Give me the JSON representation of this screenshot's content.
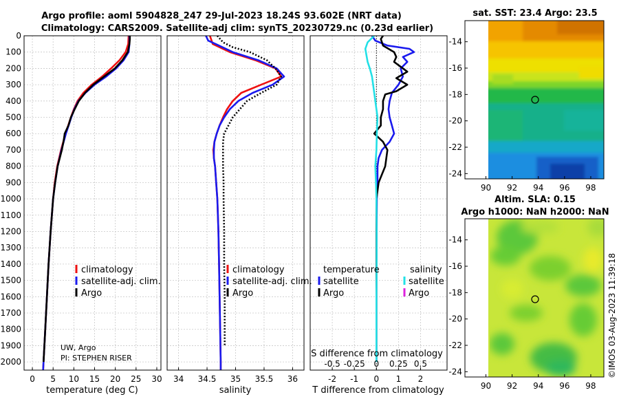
{
  "title_line1": "Argo profile: aoml 5904828_247 29-Jul-2023 18.24S 93.602E (NRT data)",
  "title_line2": "Climatology: CARS2009. Satellite-adj clim: synTS_20230729.nc (0.23d earlier)",
  "credit_line1": "UW, Argo",
  "credit_line2": "PI: STEPHEN RISER",
  "stamp": "©IMOS 03-Aug-2023 11:39:18",
  "colors": {
    "climatology": "#ee1111",
    "satellite": "#1a1aee",
    "argo": "#000000",
    "sat_salinity": "#22e0e6",
    "sat_argo_salinity": "#dd22dd"
  },
  "chart_data": [
    {
      "type": "line",
      "id": "temperature",
      "xlabel": "temperature (deg C)",
      "xlim": [
        -2,
        31
      ],
      "ylim": [
        2050,
        0
      ],
      "xticks": [
        0,
        5,
        10,
        15,
        20,
        25,
        30
      ],
      "yticks": [
        0,
        100,
        200,
        300,
        400,
        500,
        600,
        700,
        800,
        900,
        1000,
        1100,
        1200,
        1300,
        1400,
        1500,
        1600,
        1700,
        1800,
        1900,
        2000
      ],
      "legend": [
        "climatology",
        "satellite-adj. clim.",
        "Argo"
      ],
      "series": [
        {
          "name": "climatology",
          "depth": [
            0,
            50,
            100,
            150,
            200,
            250,
            300,
            350,
            400,
            450,
            500,
            600,
            700,
            800,
            900,
            1000,
            1200,
            1400,
            1600,
            1800,
            2000,
            2050
          ],
          "values": [
            23.2,
            23.1,
            22.5,
            21.0,
            19.0,
            16.8,
            14.3,
            12.3,
            10.9,
            10.0,
            9.3,
            8.0,
            6.9,
            6.0,
            5.4,
            5.0,
            4.4,
            3.9,
            3.5,
            3.1,
            2.7,
            2.6
          ]
        },
        {
          "name": "satellite-adj. clim.",
          "depth": [
            0,
            50,
            100,
            150,
            200,
            250,
            300,
            350,
            400,
            450,
            500,
            600,
            700,
            800,
            900,
            1000,
            1200,
            1400,
            1600,
            1800,
            2000,
            2050
          ],
          "values": [
            23.4,
            23.4,
            23.2,
            22.0,
            20.2,
            17.8,
            15.0,
            12.8,
            11.1,
            10.1,
            9.4,
            8.1,
            7.0,
            6.1,
            5.5,
            5.0,
            4.4,
            3.9,
            3.5,
            3.1,
            2.7,
            2.6
          ]
        },
        {
          "name": "Argo",
          "depth": [
            0,
            20,
            50,
            100,
            150,
            200,
            250,
            300,
            350,
            400,
            450,
            500,
            550,
            600,
            650,
            700,
            800,
            900,
            1000,
            1200,
            1400,
            1600,
            1800,
            2000
          ],
          "values": [
            23.5,
            23.5,
            23.4,
            23.0,
            21.7,
            19.9,
            17.3,
            14.7,
            12.7,
            11.2,
            10.2,
            9.3,
            8.7,
            7.8,
            7.5,
            7.1,
            6.1,
            5.5,
            5.0,
            4.4,
            3.9,
            3.5,
            3.1,
            2.7
          ]
        }
      ]
    },
    {
      "type": "line",
      "id": "salinity",
      "xlabel": "salinity",
      "xlim": [
        33.8,
        36.2
      ],
      "ylim": [
        2050,
        0
      ],
      "xticks": [
        34,
        34.5,
        35,
        35.5,
        36
      ],
      "legend": [
        "climatology",
        "satellite-adj. clim.",
        "Argo"
      ],
      "series": [
        {
          "name": "climatology",
          "depth": [
            0,
            50,
            100,
            150,
            200,
            250,
            300,
            350,
            400,
            450,
            500,
            550,
            600,
            650,
            700,
            750,
            800,
            900,
            1000,
            1200,
            1400,
            1600,
            1800,
            2000,
            2050
          ],
          "values": [
            34.55,
            34.6,
            34.9,
            35.35,
            35.7,
            35.8,
            35.45,
            35.1,
            34.95,
            34.85,
            34.78,
            34.72,
            34.67,
            34.63,
            34.61,
            34.62,
            34.64,
            34.66,
            34.68,
            34.7,
            34.71,
            34.72,
            34.73,
            34.74,
            34.74
          ]
        },
        {
          "name": "satellite-adj. clim.",
          "depth": [
            0,
            30,
            50,
            100,
            150,
            200,
            250,
            300,
            350,
            400,
            450,
            500,
            550,
            600,
            650,
            700,
            750,
            800,
            900,
            1000,
            1200,
            1400,
            1600,
            1800,
            2000,
            2050
          ],
          "values": [
            34.48,
            34.52,
            34.65,
            34.95,
            35.4,
            35.72,
            35.85,
            35.65,
            35.3,
            35.05,
            34.9,
            34.8,
            34.72,
            34.67,
            34.63,
            34.62,
            34.62,
            34.64,
            34.66,
            34.68,
            34.7,
            34.71,
            34.72,
            34.73,
            34.74,
            34.74
          ]
        },
        {
          "name": "Argo",
          "depth": [
            0,
            40,
            70,
            100,
            150,
            200,
            250,
            300,
            350,
            400,
            500,
            600,
            650,
            700,
            800,
            900,
            1000,
            1200,
            1400,
            1600,
            1800,
            1900
          ],
          "values": [
            34.68,
            34.78,
            34.95,
            35.25,
            35.55,
            35.7,
            35.8,
            35.72,
            35.45,
            35.2,
            34.95,
            34.8,
            34.78,
            34.78,
            34.78,
            34.79,
            34.79,
            34.8,
            34.8,
            34.81,
            34.81,
            34.81
          ]
        }
      ]
    },
    {
      "type": "line",
      "id": "difference",
      "xlabel": "T difference from climatology",
      "xlabel_top": "S difference from climatology",
      "xlim": [
        -3,
        3.2
      ],
      "ylim": [
        2050,
        0
      ],
      "xticks": [
        -2,
        -1,
        0,
        1,
        2
      ],
      "xticks_s": [
        "-0.5",
        "-0.25",
        "0",
        "0.25",
        "0.5"
      ],
      "xticks_s_values": [
        -0.5,
        -0.25,
        0,
        0.25,
        0.5
      ],
      "legend_left_title": "temperature",
      "legend_right_title": "salinity",
      "legend": [
        "satellite",
        "Argo",
        "satellite",
        "Argo"
      ],
      "series": [
        {
          "name": "satellite",
          "quantity": "temperature",
          "depth": [
            0,
            30,
            60,
            80,
            100,
            130,
            160,
            200,
            250,
            300,
            350,
            400,
            450,
            500,
            550,
            600,
            650,
            700,
            750,
            800,
            900,
            1000,
            1200,
            1400,
            1600,
            1800,
            2000
          ],
          "values": [
            -0.2,
            -0.05,
            0.5,
            1.5,
            1.7,
            1.2,
            1.4,
            1.1,
            1.2,
            1.0,
            0.7,
            0.6,
            0.55,
            0.6,
            0.7,
            0.8,
            0.6,
            0.25,
            0.1,
            0.05,
            0.05,
            0.02,
            0.01,
            0.0,
            0.0,
            0.0,
            0.0
          ]
        },
        {
          "name": "Argo",
          "quantity": "temperature",
          "depth": [
            0,
            20,
            60,
            100,
            130,
            160,
            200,
            220,
            260,
            300,
            340,
            360,
            400,
            450,
            500,
            550,
            600,
            650,
            700,
            800,
            900,
            1000,
            1200,
            1400,
            1600,
            1800,
            2000
          ],
          "values": [
            0.3,
            0.2,
            0.3,
            0.8,
            0.9,
            0.8,
            1.2,
            1.4,
            0.9,
            1.4,
            0.9,
            0.4,
            0.3,
            0.3,
            0.2,
            0.2,
            -0.1,
            0.3,
            0.5,
            0.4,
            0.1,
            0.0,
            0.0,
            0.0,
            0.0,
            0.0,
            0.0
          ]
        },
        {
          "name": "satellite",
          "quantity": "salinity",
          "depth": [
            0,
            40,
            80,
            120,
            160,
            200,
            250,
            300,
            350,
            400,
            450,
            500,
            600,
            700,
            800,
            900,
            1000,
            1200,
            1400,
            1600,
            1800,
            2000
          ],
          "values": [
            -0.1,
            -0.4,
            -0.5,
            -0.45,
            -0.4,
            -0.3,
            -0.2,
            -0.15,
            -0.1,
            -0.05,
            0.0,
            0.05,
            0.02,
            0.0,
            -0.05,
            -0.02,
            0.0,
            0.01,
            0.01,
            0.0,
            0.0,
            0.0
          ]
        },
        {
          "name": "Argo",
          "quantity": "salinity",
          "depth": [],
          "values": []
        }
      ]
    },
    {
      "type": "heatmap",
      "id": "sst_map",
      "title": "sat. SST: 23.4 Argo: 23.5",
      "xlim": [
        88.4,
        99
      ],
      "ylim": [
        -24.4,
        -12.4
      ],
      "xticks": [
        90,
        92,
        94,
        96,
        98
      ],
      "yticks": [
        -14,
        -16,
        -18,
        -20,
        -22,
        -24
      ],
      "marker": {
        "lon": 93.6,
        "lat": -18.24
      }
    },
    {
      "type": "heatmap",
      "id": "sla_map",
      "title_line1": "Altim. SLA: 0.15",
      "title_line2": "Argo h1000: NaN h2000: NaN",
      "xlim": [
        88.4,
        99
      ],
      "ylim": [
        -24.4,
        -12.4
      ],
      "xticks": [
        90,
        92,
        94,
        96,
        98
      ],
      "yticks": [
        -14,
        -16,
        -18,
        -20,
        -22,
        -24
      ],
      "marker": {
        "lon": 93.6,
        "lat": -18.24
      }
    }
  ]
}
